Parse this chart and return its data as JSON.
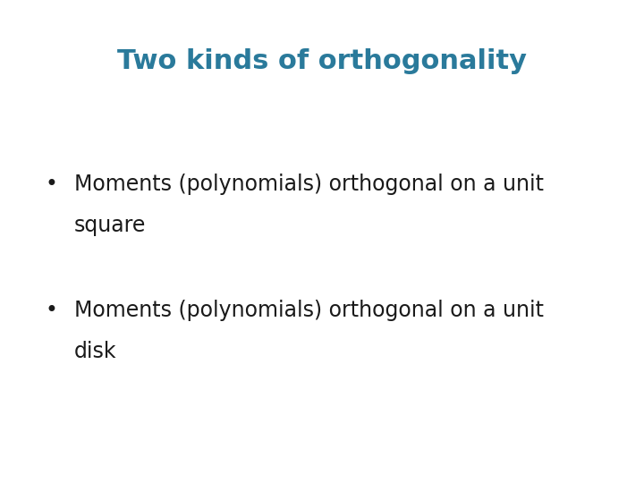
{
  "title": "Two kinds of orthogonality",
  "title_color": "#2a7a9b",
  "title_fontsize": 22,
  "title_fontweight": "bold",
  "bullet1_line1": "Moments (polynomials) orthogonal on a unit",
  "bullet1_line2": "square",
  "bullet2_line1": "Moments (polynomials) orthogonal on a unit",
  "bullet2_line2": "disk",
  "bullet_color": "#1a1a1a",
  "bullet_fontsize": 17,
  "background_color": "#ffffff",
  "fig_width": 7.2,
  "fig_height": 5.4,
  "dpi": 100
}
